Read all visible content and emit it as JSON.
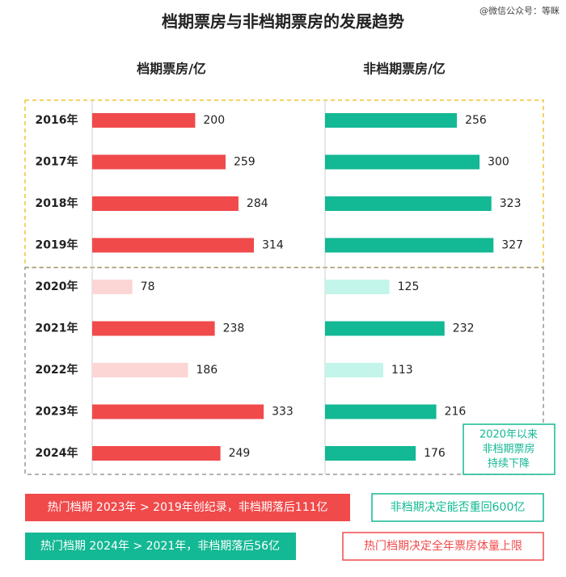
{
  "title": "档期票房与非档期票房的发展趋势",
  "watermark": "@微信公众号：等眯",
  "chart_data": [
    {
      "type": "bar",
      "title": "档期票房/亿",
      "categories": [
        "2016年",
        "2017年",
        "2018年",
        "2019年",
        "2020年",
        "2021年",
        "2022年",
        "2023年",
        "2024年"
      ],
      "values": [
        200,
        259,
        284,
        314,
        78,
        238,
        186,
        333,
        249
      ],
      "colors": [
        "#f04a4b",
        "#f04a4b",
        "#f04a4b",
        "#f04a4b",
        "#fcd5d5",
        "#f04a4b",
        "#fcd5d5",
        "#f04a4b",
        "#f04a4b"
      ]
    },
    {
      "type": "bar",
      "title": "非档期票房/亿",
      "values": [
        256,
        300,
        323,
        327,
        125,
        232,
        113,
        216,
        176
      ],
      "colors": [
        "#13b894",
        "#13b894",
        "#13b894",
        "#13b894",
        "#c3f5ea",
        "#13b894",
        "#c3f5ea",
        "#13b894",
        "#13b894"
      ],
      "annotation": [
        "2020年以来",
        "非档期票房",
        "持续下降"
      ]
    }
  ],
  "notes": [
    {
      "text": "热门档期 2023年 > 2019年创纪录，非档期落后111亿",
      "style": "red-fill"
    },
    {
      "text": "非档期决定能否重回600亿",
      "style": "teal-outline"
    },
    {
      "text": "热门档期 2024年 > 2021年，非档期落后56亿",
      "style": "teal-fill"
    },
    {
      "text": "热门档期决定全年票房体量上限",
      "style": "red-outline"
    }
  ]
}
